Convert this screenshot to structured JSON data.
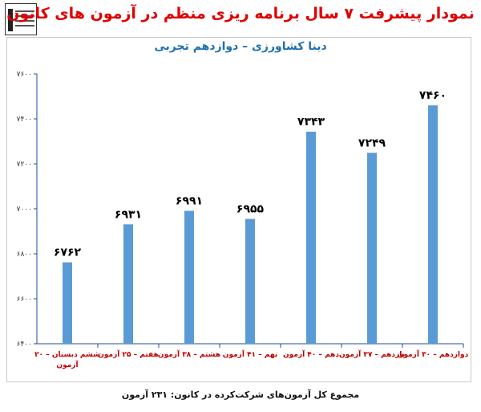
{
  "chart_data": {
    "type": "bar",
    "title": "نمودار پیشرفت ۷ سال برنامه ریزی منظم در آزمون های کانون",
    "subtitle": "دینا کشاورزی – دوازدهم تجربی",
    "footnote": "مجموع کل آزمون‌های شرکت‌کرده در کانون:  ۲۳۱ آزمون",
    "categories": [
      [
        "ششم دبستان – ۲۰",
        "آزمون"
      ],
      [
        "هفتم – ۲۵ آزمون"
      ],
      [
        "هشتم – ۳۸ آزمون"
      ],
      [
        "نهم – ۴۱ آزمون"
      ],
      [
        "دهم – ۴۰ آزمون"
      ],
      [
        "یازدهم – ۳۷ آزمون"
      ],
      [
        "دوازدهم – ۳۰ آزمون"
      ]
    ],
    "values": [
      6762,
      6931,
      6991,
      6955,
      7343,
      7249,
      7460
    ],
    "value_labels": [
      "۶۷۶۲",
      "۶۹۳۱",
      "۶۹۹۱",
      "۶۹۵۵",
      "۷۳۴۳",
      "۷۲۴۹",
      "۷۴۶۰"
    ],
    "ylim": [
      6400,
      7600
    ],
    "yticks": [
      6400,
      6600,
      6800,
      7000,
      7200,
      7400,
      7600
    ],
    "ytick_labels": [
      "۶۴۰۰",
      "۶۶۰۰",
      "۶۸۰۰",
      "۷۰۰۰",
      "۷۲۰۰",
      "۷۴۰۰",
      "۷۶۰۰"
    ],
    "bar_color": "#5b9bd5",
    "label_color": "#000000",
    "grid": false
  },
  "colors": {
    "title": "#e00000",
    "subtitle": "#1f6fb4",
    "axis": "#1f4e9a"
  },
  "logo": {
    "icon": "kanoon-logo-icon"
  }
}
